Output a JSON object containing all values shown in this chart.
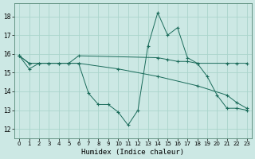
{
  "title": "",
  "xlabel": "Humidex (Indice chaleur)",
  "bg_color": "#cce8e4",
  "grid_color": "#aad4cc",
  "line_color": "#1a6b5a",
  "xlim": [
    -0.5,
    23.5
  ],
  "ylim": [
    11.5,
    18.7
  ],
  "yticks": [
    12,
    13,
    14,
    15,
    16,
    17,
    18
  ],
  "xticks": [
    0,
    1,
    2,
    3,
    4,
    5,
    6,
    7,
    8,
    9,
    10,
    11,
    12,
    13,
    14,
    15,
    16,
    17,
    18,
    19,
    20,
    21,
    22,
    23
  ],
  "lines": [
    {
      "x": [
        0,
        1,
        2,
        3,
        4,
        5,
        6,
        7,
        8,
        9,
        10,
        11,
        12,
        13,
        14,
        15,
        16,
        17,
        18,
        19,
        20,
        21,
        22,
        23
      ],
      "y": [
        15.9,
        15.2,
        15.5,
        15.5,
        15.5,
        15.5,
        15.5,
        13.9,
        13.3,
        13.3,
        12.9,
        12.2,
        13.0,
        16.4,
        18.2,
        17.0,
        17.4,
        15.8,
        15.5,
        14.8,
        13.8,
        13.1,
        13.1,
        13.0
      ]
    },
    {
      "x": [
        0,
        1,
        2,
        3,
        4,
        5,
        6,
        14,
        15,
        16,
        17,
        18,
        21,
        22,
        23
      ],
      "y": [
        15.9,
        15.5,
        15.5,
        15.5,
        15.5,
        15.5,
        15.9,
        15.8,
        15.7,
        15.6,
        15.6,
        15.5,
        15.5,
        15.5,
        15.5
      ]
    },
    {
      "x": [
        0,
        1,
        6,
        10,
        14,
        18,
        21,
        22,
        23
      ],
      "y": [
        15.9,
        15.5,
        15.5,
        15.2,
        14.8,
        14.3,
        13.8,
        13.4,
        13.1
      ]
    }
  ]
}
